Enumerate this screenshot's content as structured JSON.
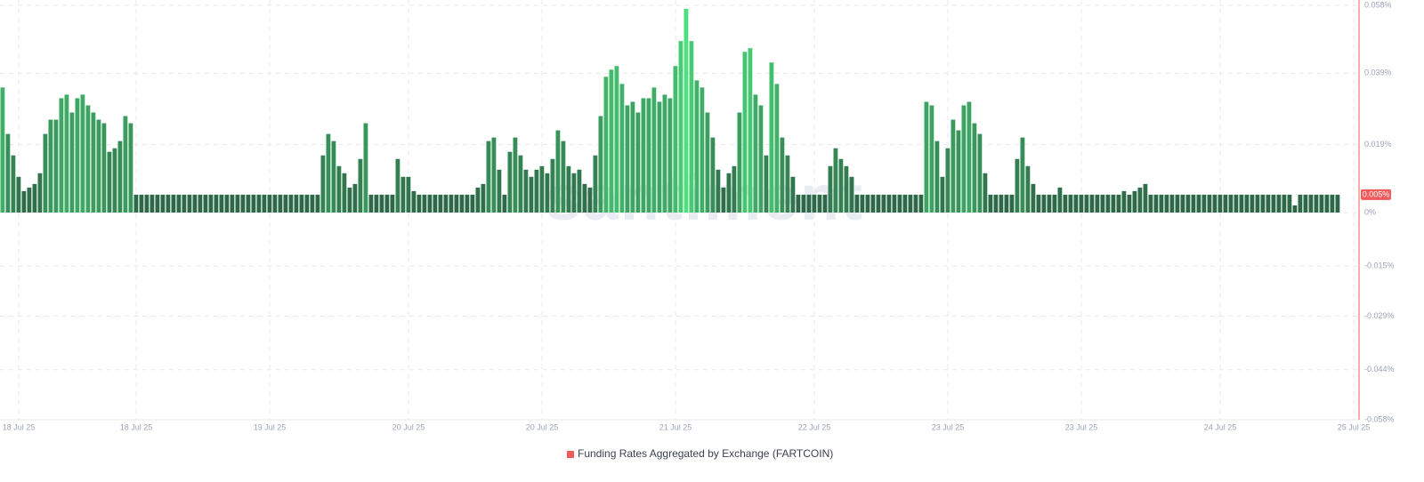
{
  "chart_data": {
    "type": "bar",
    "watermark": "santiment",
    "series": [
      {
        "name": "Funding Rates Aggregated by Exchange (FARTCOIN)",
        "color": "#f05a5a",
        "values": [
          0.035,
          0.022,
          0.016,
          0.01,
          0.006,
          0.007,
          0.008,
          0.011,
          0.022,
          0.026,
          0.026,
          0.032,
          0.033,
          0.028,
          0.032,
          0.033,
          0.03,
          0.028,
          0.026,
          0.025,
          0.017,
          0.018,
          0.02,
          0.027,
          0.025,
          0.005,
          0.005,
          0.005,
          0.005,
          0.005,
          0.005,
          0.005,
          0.005,
          0.005,
          0.005,
          0.005,
          0.005,
          0.005,
          0.005,
          0.005,
          0.005,
          0.005,
          0.005,
          0.005,
          0.005,
          0.005,
          0.005,
          0.005,
          0.005,
          0.005,
          0.005,
          0.005,
          0.005,
          0.005,
          0.005,
          0.005,
          0.005,
          0.005,
          0.005,
          0.005,
          0.016,
          0.022,
          0.02,
          0.013,
          0.011,
          0.007,
          0.008,
          0.015,
          0.025,
          0.005,
          0.005,
          0.005,
          0.005,
          0.005,
          0.015,
          0.01,
          0.01,
          0.006,
          0.005,
          0.005,
          0.005,
          0.005,
          0.005,
          0.005,
          0.005,
          0.005,
          0.005,
          0.005,
          0.005,
          0.007,
          0.008,
          0.02,
          0.021,
          0.012,
          0.005,
          0.017,
          0.021,
          0.016,
          0.012,
          0.01,
          0.012,
          0.013,
          0.011,
          0.015,
          0.023,
          0.02,
          0.013,
          0.011,
          0.012,
          0.008,
          0.007,
          0.016,
          0.027,
          0.038,
          0.04,
          0.041,
          0.036,
          0.03,
          0.031,
          0.028,
          0.032,
          0.032,
          0.035,
          0.031,
          0.033,
          0.032,
          0.041,
          0.048,
          0.057,
          0.048,
          0.037,
          0.035,
          0.028,
          0.021,
          0.012,
          0.007,
          0.011,
          0.013,
          0.028,
          0.045,
          0.046,
          0.033,
          0.03,
          0.016,
          0.042,
          0.036,
          0.021,
          0.016,
          0.01,
          0.005,
          0.005,
          0.005,
          0.005,
          0.005,
          0.005,
          0.013,
          0.018,
          0.015,
          0.013,
          0.01,
          0.005,
          0.005,
          0.005,
          0.005,
          0.005,
          0.005,
          0.005,
          0.005,
          0.005,
          0.005,
          0.005,
          0.005,
          0.005,
          0.031,
          0.03,
          0.02,
          0.01,
          0.018,
          0.026,
          0.023,
          0.03,
          0.031,
          0.025,
          0.022,
          0.011,
          0.005,
          0.005,
          0.005,
          0.005,
          0.005,
          0.015,
          0.021,
          0.013,
          0.008,
          0.005,
          0.005,
          0.005,
          0.005,
          0.007,
          0.005,
          0.005,
          0.005,
          0.005,
          0.005,
          0.005,
          0.005,
          0.005,
          0.005,
          0.005,
          0.005,
          0.006,
          0.005,
          0.006,
          0.007,
          0.008,
          0.005,
          0.005,
          0.005,
          0.005,
          0.005,
          0.005,
          0.005,
          0.005,
          0.005,
          0.005,
          0.005,
          0.005,
          0.005,
          0.005,
          0.005,
          0.005,
          0.005,
          0.005,
          0.005,
          0.005,
          0.005,
          0.005,
          0.005,
          0.005,
          0.005,
          0.005,
          0.005,
          0.002,
          0.005,
          0.005,
          0.005,
          0.005,
          0.005,
          0.005,
          0.005,
          0.005,
          null,
          null,
          null
        ]
      }
    ],
    "categories": [
      null,
      null,
      null,
      "18 Jul 25",
      null,
      null,
      null,
      null,
      null,
      null,
      null,
      null,
      null,
      null,
      null,
      null,
      null,
      null,
      null,
      null,
      null,
      null,
      null,
      null,
      null,
      "18 Jul 25",
      null,
      null,
      null,
      null,
      null,
      null,
      null,
      null,
      null,
      null,
      null,
      null,
      null,
      null,
      null,
      null,
      null,
      null,
      null,
      null,
      null,
      null,
      null,
      null,
      "19 Jul 25",
      null,
      null,
      null,
      null,
      null,
      null,
      null,
      null,
      null,
      null,
      null,
      null,
      null,
      null,
      null,
      null,
      null,
      null,
      null,
      null,
      null,
      null,
      null,
      null,
      null,
      "20 Jul 25",
      null,
      null,
      null,
      null,
      null,
      null,
      null,
      null,
      null,
      null,
      null,
      null,
      null,
      null,
      null,
      null,
      null,
      null,
      null,
      null,
      null,
      null,
      null,
      null,
      "20 Jul 25",
      null,
      null,
      null,
      null,
      null,
      null,
      null,
      null,
      null,
      null,
      null,
      null,
      null,
      null,
      null,
      null,
      null,
      null,
      null,
      null,
      null,
      null,
      null,
      null,
      "21 Jul 25",
      null,
      null,
      null,
      null,
      null,
      null,
      null,
      null,
      null,
      null,
      null,
      null,
      null,
      null,
      null,
      null,
      null,
      null,
      null,
      null,
      null,
      null,
      null,
      null,
      null,
      "22 Jul 25",
      null,
      null,
      null,
      null,
      null,
      null,
      null,
      null,
      null,
      null,
      null,
      null,
      null,
      null,
      null,
      null,
      null,
      null,
      null,
      null,
      null,
      null,
      null,
      null,
      "23 Jul 25",
      null,
      null,
      null,
      null,
      null,
      null,
      null,
      null,
      null,
      null,
      null,
      null,
      null,
      null,
      null,
      null,
      null,
      null,
      null,
      null,
      null,
      null,
      null,
      null,
      "23 Jul 25",
      null,
      null,
      null,
      null,
      null,
      null,
      null,
      null,
      null,
      null,
      null,
      null,
      null,
      null,
      null,
      null,
      null,
      null,
      null,
      null,
      null,
      null,
      null,
      null,
      null,
      "24 Jul 25",
      null,
      null,
      null,
      null,
      null,
      null,
      null,
      null,
      null,
      null,
      null,
      null,
      null,
      null,
      null,
      null,
      null,
      null,
      null,
      null,
      null,
      null,
      null,
      null,
      "25 Jul 25"
    ],
    "ylim": [
      -0.058,
      0.058
    ],
    "yticks": [
      {
        "value": -0.058,
        "label": "-0.058%"
      },
      {
        "value": -0.044,
        "label": "-0.044%"
      },
      {
        "value": -0.029,
        "label": "-0.029%"
      },
      {
        "value": -0.015,
        "label": "-0.015%"
      },
      {
        "value": 0,
        "label": "0%"
      },
      {
        "value": 0.019,
        "label": "0.019%"
      },
      {
        "value": 0.039,
        "label": "0.039%"
      },
      {
        "value": 0.058,
        "label": "0.058%"
      }
    ],
    "last_value": {
      "value": 0.005,
      "label": "0.005%"
    },
    "bar_colors": {
      "low": "#2a5e43",
      "high": "#4de37e"
    },
    "axis_color": "#f05a5a",
    "grid": true
  }
}
